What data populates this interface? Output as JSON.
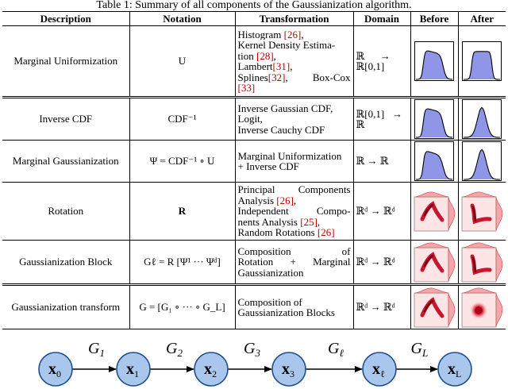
{
  "caption": "Table 1: Summary of all components of the Gaussianization algorithm.",
  "headers": [
    "Description",
    "Notation",
    "Transformation",
    "Domain",
    "Before",
    "After"
  ],
  "rows": [
    {
      "description": "Marginal Uniformization",
      "notation": "U",
      "transformation": [
        "Histogram [26],",
        "Kernel Density Estima-",
        "tion [28],",
        "Lambert[31],",
        "Splines[32],    Box-Cox",
        "[33]"
      ],
      "domain": [
        "ℝ      →",
        "ℝ[0,1]"
      ],
      "before": "uniform-hist",
      "after": "uniform-hist-flat"
    },
    {
      "description": "Inverse CDF",
      "notation": "CDF⁻¹",
      "transformation": [
        "Inverse Gaussian CDF,",
        "Logit,",
        "Inverse Cauchy CDF"
      ],
      "domain": [
        "ℝ[0,1]   →",
        "ℝ"
      ],
      "before": "uniform-hist",
      "after": "gaussian-hist"
    },
    {
      "description": "Marginal Gaussianization",
      "notation": "Ψ = CDF⁻¹ ∘ U",
      "transformation": [
        "Marginal Uniformization",
        "+ Inverse CDF"
      ],
      "domain": [
        "ℝ → ℝ"
      ],
      "before": "skewed-hist",
      "after": "gaussian-hist"
    },
    {
      "description": "Rotation",
      "notation": "R",
      "transformation": [
        "Principal     Components",
        "Analysis [26],",
        "Independent     Compo-",
        "nents Analysis [25],",
        "Random Rotations [26]"
      ],
      "domain": [
        "ℝᵈ → ℝᵈ"
      ],
      "before": "joint-density",
      "after": "joint-density-rotated"
    },
    {
      "description": "Gaussianization Block",
      "notation": "Gℓ = R [Ψ¹ ··· Ψᵈ]",
      "transformation": [
        "Composition       of",
        "Rotation   +   Marginal",
        "Gaussianization"
      ],
      "domain": [
        "ℝᵈ → ℝᵈ"
      ],
      "before": "joint-density",
      "after": "joint-density-rotated"
    },
    {
      "description": "Gaussianization transform",
      "notation": "G = [G₁ ∘ ··· ∘ G_L]",
      "transformation": [
        "Composition of",
        "Gaussianization Blocks"
      ],
      "domain": [
        "ℝᵈ → ℝᵈ"
      ],
      "before": "joint-density",
      "after": "joint-density-gaussian"
    }
  ],
  "chain": {
    "nodes": [
      {
        "base": "x",
        "sub": "0"
      },
      {
        "base": "x",
        "sub": "1"
      },
      {
        "base": "x",
        "sub": "2"
      },
      {
        "base": "x",
        "sub": "3"
      },
      {
        "base": "x",
        "sub": "ℓ"
      },
      {
        "base": "x",
        "sub": "L"
      }
    ],
    "edges": [
      {
        "base": "G",
        "sub": "1"
      },
      {
        "base": "G",
        "sub": "2"
      },
      {
        "base": "G",
        "sub": "3"
      },
      {
        "base": "G",
        "sub": "ℓ"
      },
      {
        "base": "G",
        "sub": "L"
      }
    ],
    "node_fill": "#a9c7ec",
    "node_stroke": "#1f4e8c"
  }
}
